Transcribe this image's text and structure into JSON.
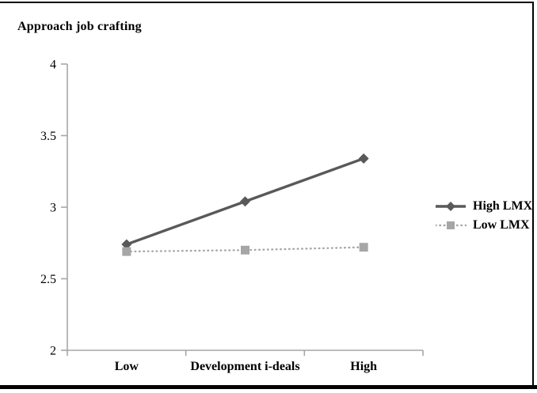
{
  "chart_data": {
    "type": "line",
    "title": "Approach job crafting",
    "categories": [
      "Low",
      "Development i-deals",
      "High"
    ],
    "x_axis_title": "Development i-deals",
    "series": [
      {
        "name": "High LMX",
        "values": [
          2.74,
          3.04,
          3.34
        ],
        "color": "#595959",
        "line_style": "solid",
        "marker": "diamond"
      },
      {
        "name": "Low LMX",
        "values": [
          2.69,
          2.7,
          2.72
        ],
        "color": "#a6a6a6",
        "line_style": "dotted",
        "marker": "square"
      }
    ],
    "ylim": [
      2,
      4
    ],
    "yticks": [
      2,
      2.5,
      3,
      3.5,
      4
    ],
    "ytick_labels": [
      "2",
      "2.5",
      "3",
      "3.5",
      "4"
    ],
    "grid": false,
    "legend_position": "right",
    "axis_color": "#a6a6a6",
    "text_color": "#000000"
  }
}
